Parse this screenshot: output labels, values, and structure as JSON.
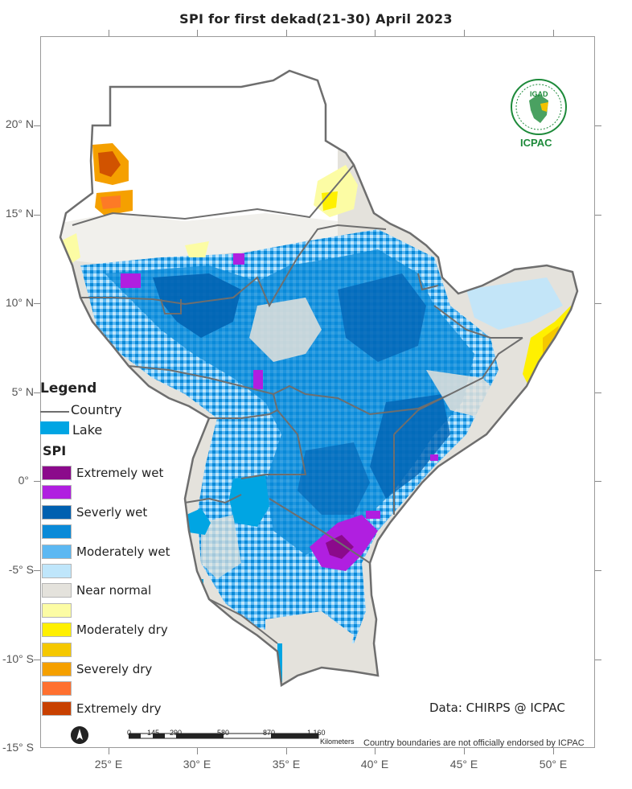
{
  "title": "SPI   for  first dekad(21-30) April 2023",
  "lat_labels": [
    "20° N",
    "15° N",
    "10° N",
    "5° N",
    "0°",
    "-5° S",
    "-10° S",
    "-15° S"
  ],
  "lon_labels": [
    "25° E",
    "30° E",
    "35° E",
    "40° E",
    "45° E",
    "50° E"
  ],
  "legend": {
    "title": "Legend",
    "country_label": "Country",
    "lake_label": "Lake",
    "spi_title": "SPI",
    "classes": [
      {
        "label": "Extremely wet",
        "color": "#8b0a8b"
      },
      {
        "label": "",
        "color": "#b01fe0"
      },
      {
        "label": "Severly wet",
        "color": "#0060b0"
      },
      {
        "label": "",
        "color": "#0a8ad8"
      },
      {
        "label": "Moderately wet",
        "color": "#5cb8f2"
      },
      {
        "label": "",
        "color": "#bfe6fb"
      },
      {
        "label": "Near normal",
        "color": "#e4e2dc"
      },
      {
        "label": "",
        "color": "#fcfca4"
      },
      {
        "label": "Moderately dry",
        "color": "#fff000"
      },
      {
        "label": "",
        "color": "#f5c800"
      },
      {
        "label": "Severely dry",
        "color": "#f5a000"
      },
      {
        "label": "",
        "color": "#ff7030"
      },
      {
        "label": "Extremely dry",
        "color": "#c84000"
      }
    ],
    "lake_color": "#00a5e3",
    "country_color": "#6e6e6e"
  },
  "data_note": "Data: CHIRPS @ ICPAC",
  "disclaimer": "Country boundaries are not officially endorsed by ICPAC",
  "scalebar": {
    "labels": [
      "0",
      "145",
      "290",
      "580",
      "870",
      "1,160"
    ],
    "unit": "Kilometers"
  },
  "logo": {
    "text": "ICPAC",
    "inner_text": "IGAD"
  }
}
